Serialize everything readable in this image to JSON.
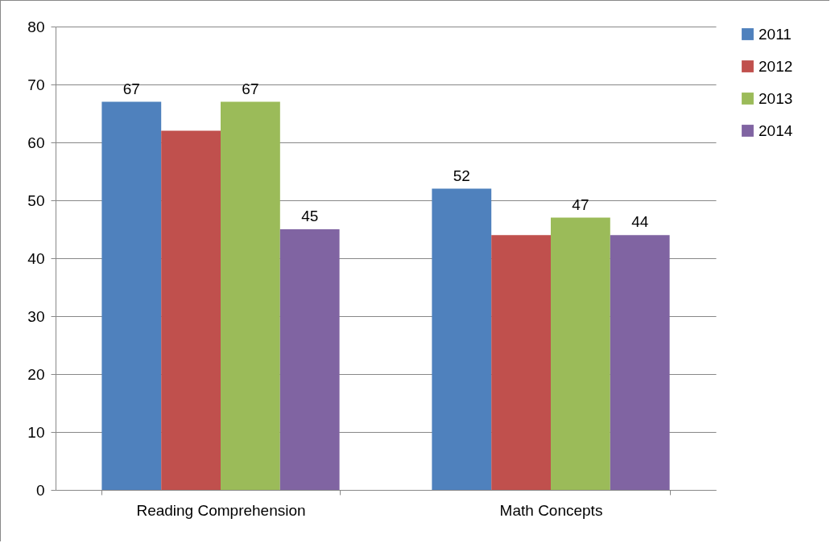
{
  "chart_data": {
    "type": "bar",
    "categories": [
      "Reading Comprehension",
      "Math Concepts"
    ],
    "series": [
      {
        "name": "2011",
        "color": "#4f81bd",
        "values": [
          67,
          52
        ],
        "value_labels": [
          "67",
          "52"
        ]
      },
      {
        "name": "2012",
        "color": "#c0504d",
        "values": [
          62,
          44
        ],
        "value_labels": [
          null,
          null
        ]
      },
      {
        "name": "2013",
        "color": "#9bbb59",
        "values": [
          67,
          47
        ],
        "value_labels": [
          "67",
          "47"
        ]
      },
      {
        "name": "2014",
        "color": "#8064a2",
        "values": [
          45,
          44
        ],
        "value_labels": [
          "45",
          "44"
        ]
      }
    ],
    "ylim": [
      0,
      80
    ],
    "yticks": [
      0,
      10,
      20,
      30,
      40,
      50,
      60,
      70,
      80
    ],
    "grid": "y",
    "legend": "right"
  }
}
